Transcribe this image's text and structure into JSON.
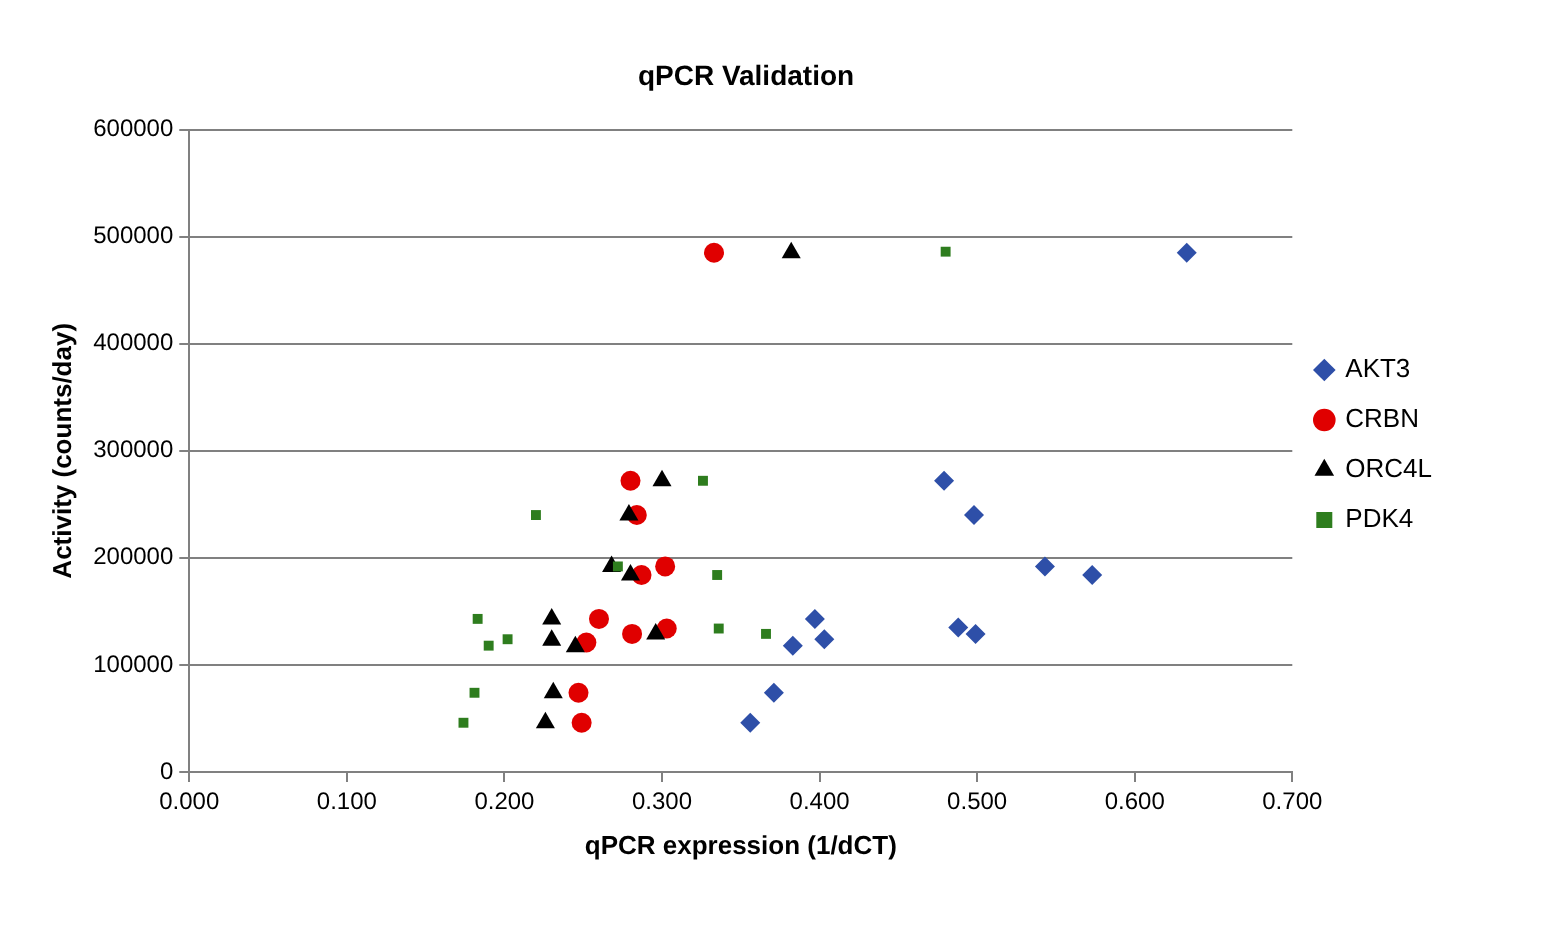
{
  "chart_data": {
    "type": "scatter",
    "title": "qPCR Validation",
    "xlabel": "qPCR expression (1/dCT)",
    "ylabel": "Activity (counts/day)",
    "xlim": [
      0,
      0.7
    ],
    "xticks": [
      {
        "value": 0,
        "label": "0.000"
      },
      {
        "value": 0.1,
        "label": "0.100"
      },
      {
        "value": 0.2,
        "label": "0.200"
      },
      {
        "value": 0.3,
        "label": "0.300"
      },
      {
        "value": 0.4,
        "label": "0.400"
      },
      {
        "value": 0.5,
        "label": "0.500"
      },
      {
        "value": 0.6,
        "label": "0.600"
      },
      {
        "value": 0.7,
        "label": "0.700"
      }
    ],
    "ylim": [
      0,
      600000
    ],
    "yticks": [
      0,
      100000,
      200000,
      300000,
      400000,
      500000,
      600000
    ],
    "grid": "y",
    "legend": "right",
    "series": [
      {
        "name": "AKT3",
        "color": "#2e4fa8",
        "marker": "diamond",
        "x": [
          0.633,
          0.479,
          0.498,
          0.543,
          0.573,
          0.397,
          0.488,
          0.499,
          0.403,
          0.383,
          0.371,
          0.356
        ],
        "values": [
          485000,
          272000,
          240000,
          192000,
          184000,
          143000,
          135000,
          129000,
          124000,
          118000,
          74000,
          46000
        ]
      },
      {
        "name": "CRBN",
        "color": "#e00000",
        "marker": "circle",
        "x": [
          0.333,
          0.28,
          0.284,
          0.302,
          0.287,
          0.26,
          0.281,
          0.303,
          0.252,
          0.247,
          0.249
        ],
        "values": [
          485000,
          272000,
          240000,
          192000,
          184000,
          143000,
          129000,
          134000,
          121000,
          74000,
          46000
        ]
      },
      {
        "name": "ORC4L",
        "color": "#000000",
        "marker": "triangle",
        "x": [
          0.382,
          0.3,
          0.279,
          0.268,
          0.28,
          0.23,
          0.23,
          0.245,
          0.296,
          0.231,
          0.226
        ],
        "values": [
          485000,
          272000,
          240000,
          192000,
          184000,
          143000,
          123000,
          117000,
          129000,
          74000,
          46000
        ]
      },
      {
        "name": "PDK4",
        "color": "#2e7d1e",
        "marker": "square",
        "x": [
          0.48,
          0.326,
          0.22,
          0.272,
          0.335,
          0.336,
          0.366,
          0.183,
          0.202,
          0.19,
          0.181,
          0.174
        ],
        "values": [
          486000,
          272000,
          240000,
          192000,
          184000,
          134000,
          129000,
          143000,
          124000,
          118000,
          74000,
          46000
        ]
      }
    ]
  }
}
